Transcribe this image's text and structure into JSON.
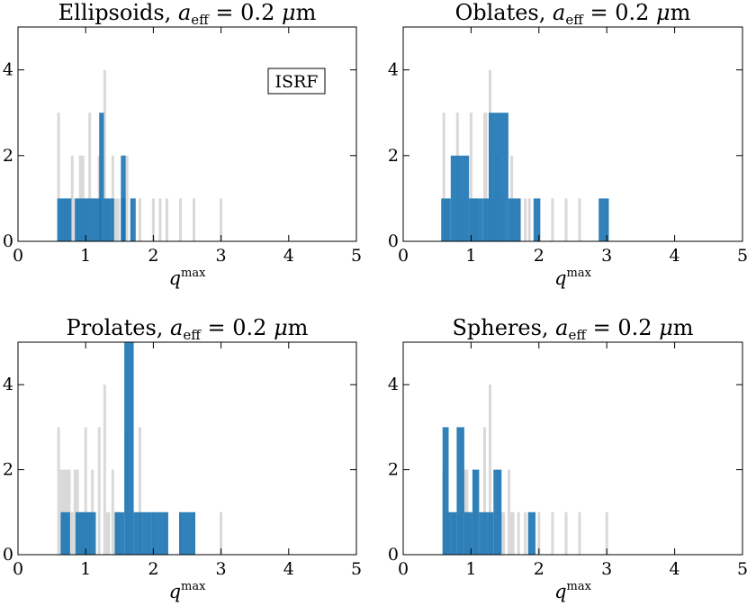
{
  "figure": {
    "xlabel_base": "q",
    "xlabel_sup": "max",
    "annotation": "ISRF",
    "colors": {
      "gray": "#d9d9d9",
      "blue": "#1f77b4",
      "overlap": "#1c5f94"
    }
  },
  "chart_data": [
    {
      "type": "bar",
      "title": "Ellipsoids, a_eff = 0.2 μm",
      "title_parts": {
        "shape": "Ellipsoids",
        "sub": "eff",
        "value": " = 0.2 ",
        "mu": "μ",
        "unit": "m"
      },
      "xlabel": "q^max",
      "ylabel": "",
      "xlim": [
        0,
        5
      ],
      "ylim": [
        0,
        5
      ],
      "xticks": [
        0,
        1,
        2,
        3,
        4,
        5
      ],
      "yticks": [
        0,
        2,
        4
      ],
      "annotation": "ISRF",
      "series": [
        {
          "name": "all",
          "color": "#d9d9d9",
          "bins": [
            [
              0.58,
              0.62,
              3
            ],
            [
              0.62,
              0.78,
              1
            ],
            [
              0.78,
              0.82,
              2
            ],
            [
              0.82,
              0.9,
              1
            ],
            [
              0.9,
              0.98,
              2
            ],
            [
              0.98,
              1.04,
              1
            ],
            [
              1.04,
              1.08,
              3
            ],
            [
              1.08,
              1.18,
              1
            ],
            [
              1.18,
              1.23,
              2
            ],
            [
              1.26,
              1.3,
              4
            ],
            [
              1.3,
              1.36,
              1
            ],
            [
              1.38,
              1.42,
              2
            ],
            [
              1.42,
              1.5,
              1
            ],
            [
              1.58,
              1.63,
              2
            ],
            [
              1.66,
              1.7,
              1
            ],
            [
              1.78,
              1.82,
              1
            ],
            [
              1.98,
              2.02,
              1
            ],
            [
              2.08,
              2.12,
              1
            ],
            [
              2.18,
              2.22,
              1
            ],
            [
              2.38,
              2.42,
              1
            ],
            [
              2.58,
              2.62,
              1
            ],
            [
              2.98,
              3.02,
              1
            ]
          ]
        },
        {
          "name": "highlighted",
          "color": "#1f77b4",
          "bins": [
            [
              0.58,
              0.79,
              1
            ],
            [
              0.84,
              1.17,
              1
            ],
            [
              1.17,
              1.24,
              1
            ],
            [
              1.2,
              1.27,
              3
            ],
            [
              1.27,
              1.42,
              1
            ],
            [
              1.52,
              1.59,
              2
            ],
            [
              1.52,
              1.59,
              1
            ],
            [
              1.66,
              1.74,
              1
            ]
          ]
        }
      ]
    },
    {
      "type": "bar",
      "title": "Oblates, a_eff = 0.2 μm",
      "title_parts": {
        "shape": "Oblates",
        "sub": "eff",
        "value": " = 0.2 ",
        "mu": "μ",
        "unit": "m"
      },
      "xlabel": "q^max",
      "ylabel": "",
      "xlim": [
        0,
        5
      ],
      "ylim": [
        0,
        5
      ],
      "xticks": [
        0,
        1,
        2,
        3,
        4,
        5
      ],
      "yticks": [
        0,
        2,
        4
      ],
      "series": [
        {
          "name": "all",
          "color": "#d9d9d9",
          "bins": [
            [
              0.58,
              0.62,
              3
            ],
            [
              0.62,
              0.68,
              1
            ],
            [
              0.78,
              0.82,
              3
            ],
            [
              0.82,
              0.9,
              1
            ],
            [
              0.98,
              1.02,
              3
            ],
            [
              1.02,
              1.1,
              1
            ],
            [
              1.18,
              1.24,
              3
            ],
            [
              1.26,
              1.3,
              4
            ],
            [
              1.3,
              1.36,
              1
            ],
            [
              1.36,
              1.42,
              2
            ],
            [
              1.42,
              1.48,
              1
            ],
            [
              1.58,
              1.62,
              2
            ],
            [
              1.62,
              1.68,
              1
            ],
            [
              1.68,
              1.74,
              1
            ],
            [
              1.78,
              1.82,
              1
            ],
            [
              1.84,
              1.88,
              1
            ],
            [
              1.98,
              2.02,
              1
            ],
            [
              2.18,
              2.22,
              1
            ],
            [
              2.38,
              2.42,
              1
            ],
            [
              2.58,
              2.62,
              1
            ],
            [
              2.98,
              3.02,
              1
            ]
          ]
        },
        {
          "name": "highlighted",
          "color": "#1f77b4",
          "bins": [
            [
              0.56,
              0.7,
              1
            ],
            [
              0.7,
              0.97,
              2
            ],
            [
              0.97,
              1.17,
              1
            ],
            [
              1.17,
              1.27,
              1
            ],
            [
              1.26,
              1.55,
              3
            ],
            [
              1.55,
              1.67,
              1
            ],
            [
              1.67,
              1.73,
              1
            ],
            [
              1.92,
              2.02,
              1
            ],
            [
              2.88,
              3.03,
              1
            ]
          ]
        }
      ]
    },
    {
      "type": "bar",
      "title": "Prolates, a_eff = 0.2 μm",
      "title_parts": {
        "shape": "Prolates",
        "sub": "eff",
        "value": " = 0.2 ",
        "mu": "μ",
        "unit": "m"
      },
      "xlabel": "q^max",
      "ylabel": "",
      "xlim": [
        0,
        5
      ],
      "ylim": [
        0,
        5
      ],
      "xticks": [
        0,
        1,
        2,
        3,
        4,
        5
      ],
      "yticks": [
        0,
        2,
        4
      ],
      "series": [
        {
          "name": "all",
          "color": "#d9d9d9",
          "bins": [
            [
              0.58,
              0.62,
              3
            ],
            [
              0.62,
              0.78,
              2
            ],
            [
              0.78,
              0.82,
              1
            ],
            [
              0.82,
              0.9,
              2
            ],
            [
              0.9,
              0.98,
              1
            ],
            [
              0.98,
              1.02,
              3
            ],
            [
              1.02,
              1.08,
              1
            ],
            [
              1.08,
              1.12,
              2
            ],
            [
              1.18,
              1.22,
              3
            ],
            [
              1.26,
              1.3,
              4
            ],
            [
              1.3,
              1.36,
              1
            ],
            [
              1.38,
              1.42,
              2
            ],
            [
              1.42,
              1.5,
              1
            ],
            [
              1.58,
              1.62,
              3
            ],
            [
              1.62,
              1.7,
              1
            ],
            [
              1.78,
              1.82,
              3
            ],
            [
              1.98,
              2.02,
              1
            ],
            [
              2.18,
              2.22,
              1
            ],
            [
              2.38,
              2.42,
              1
            ],
            [
              2.58,
              2.62,
              1
            ],
            [
              2.98,
              3.02,
              1
            ]
          ]
        },
        {
          "name": "highlighted",
          "color": "#1f77b4",
          "bins": [
            [
              0.63,
              0.77,
              1
            ],
            [
              0.85,
              1.15,
              1
            ],
            [
              1.43,
              1.57,
              1
            ],
            [
              1.57,
              1.71,
              5
            ],
            [
              1.71,
              1.84,
              1
            ],
            [
              1.84,
              1.98,
              1
            ],
            [
              1.98,
              2.22,
              1
            ],
            [
              2.38,
              2.62,
              1
            ]
          ]
        }
      ]
    },
    {
      "type": "bar",
      "title": "Spheres, a_eff = 0.2 μm",
      "title_parts": {
        "shape": "Spheres",
        "sub": "eff",
        "value": " = 0.2 ",
        "mu": "μ",
        "unit": "m"
      },
      "xlabel": "q^max",
      "ylabel": "",
      "xlim": [
        0,
        5
      ],
      "ylim": [
        0,
        5
      ],
      "xticks": [
        0,
        1,
        2,
        3,
        4,
        5
      ],
      "yticks": [
        0,
        2,
        4
      ],
      "series": [
        {
          "name": "all",
          "color": "#d9d9d9",
          "bins": [
            [
              0.58,
              0.62,
              2
            ],
            [
              0.62,
              0.68,
              1
            ],
            [
              0.72,
              0.78,
              1
            ],
            [
              0.78,
              0.82,
              3
            ],
            [
              0.82,
              0.88,
              1
            ],
            [
              0.88,
              0.96,
              2
            ],
            [
              0.96,
              1.04,
              1
            ],
            [
              1.04,
              1.1,
              2
            ],
            [
              1.18,
              1.22,
              3
            ],
            [
              1.26,
              1.3,
              4
            ],
            [
              1.3,
              1.36,
              1
            ],
            [
              1.38,
              1.42,
              2
            ],
            [
              1.42,
              1.5,
              1
            ],
            [
              1.54,
              1.58,
              2
            ],
            [
              1.58,
              1.64,
              1
            ],
            [
              1.68,
              1.72,
              1
            ],
            [
              1.78,
              1.82,
              1
            ],
            [
              1.98,
              2.02,
              1
            ],
            [
              2.18,
              2.22,
              1
            ],
            [
              2.38,
              2.42,
              1
            ],
            [
              2.58,
              2.62,
              1
            ],
            [
              2.98,
              3.02,
              1
            ]
          ]
        },
        {
          "name": "highlighted",
          "color": "#1f77b4",
          "bins": [
            [
              0.58,
              0.67,
              3
            ],
            [
              0.67,
              0.79,
              1
            ],
            [
              0.79,
              0.9,
              3
            ],
            [
              0.9,
              1.02,
              1
            ],
            [
              1.02,
              1.12,
              2
            ],
            [
              1.12,
              1.33,
              1
            ],
            [
              1.33,
              1.45,
              2
            ],
            [
              1.84,
              1.95,
              1
            ]
          ]
        }
      ]
    }
  ]
}
